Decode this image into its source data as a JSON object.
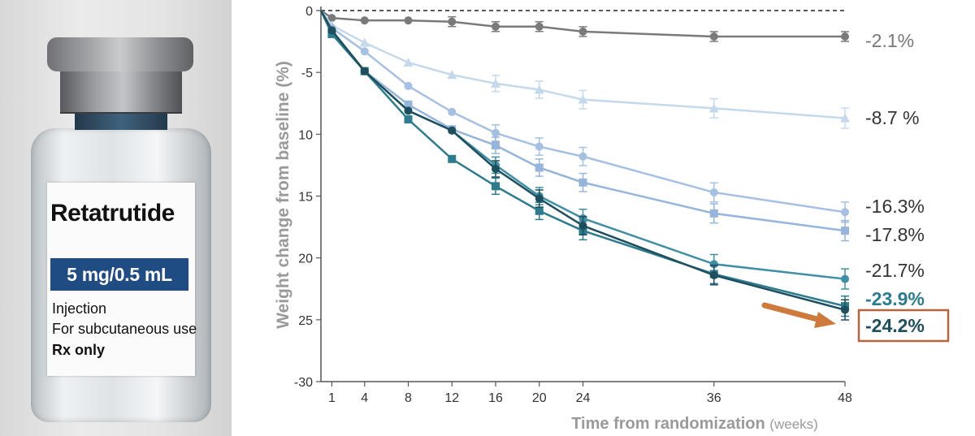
{
  "vial": {
    "name": "Retatrutide",
    "dose": "5 mg/0.5 mL",
    "line1": "Injection",
    "line2": "For subcutaneous use",
    "line3": "Rx only"
  },
  "colors": {
    "gray": "#7a7a7a",
    "lightest": "#c5d9ec",
    "light": "#a6c0e3",
    "mid": "#96b5dc",
    "teal": "#3f8fa6",
    "tealDark": "#2c7b8f",
    "dark": "#1e4f5e",
    "highlight_box": "#b5653b",
    "arrow": "#cd7a3c"
  },
  "chart_data": {
    "type": "line",
    "xlabel": "Time from randomization",
    "xlabel_unit": "(weeks)",
    "ylabel": "Weight change from baseline (%)",
    "xlim": [
      0,
      48
    ],
    "ylim": [
      -30,
      0
    ],
    "x_ticks": [
      1,
      4,
      8,
      12,
      16,
      20,
      24,
      36,
      48
    ],
    "y_ticks": [
      0,
      -5,
      -10,
      -15,
      -20,
      -25,
      -30
    ],
    "y_tick_labels": [
      "0",
      "-5",
      "10",
      "15",
      "20",
      "25",
      "-30"
    ],
    "reference_line": 0,
    "x": [
      0,
      1,
      4,
      8,
      12,
      16,
      20,
      24,
      36,
      48
    ],
    "series": [
      {
        "key": "gray",
        "marker": "circle",
        "values": [
          0,
          -0.6,
          -0.8,
          -0.8,
          -0.9,
          -1.3,
          -1.3,
          -1.7,
          -2.1,
          -2.1
        ],
        "end_label": "-2.1%"
      },
      {
        "key": "lightest",
        "marker": "triangle",
        "values": [
          0,
          -1.2,
          -2.6,
          -4.2,
          -5.2,
          -5.9,
          -6.4,
          -7.2,
          -7.9,
          -8.7
        ],
        "end_label": "-8.7 %"
      },
      {
        "key": "light",
        "marker": "circle",
        "values": [
          0,
          -1.4,
          -3.3,
          -6.1,
          -8.2,
          -9.9,
          -11.0,
          -11.8,
          -14.7,
          -16.3
        ],
        "end_label": "-16.3%"
      },
      {
        "key": "mid",
        "marker": "square",
        "values": [
          0,
          -1.6,
          -4.9,
          -7.6,
          -9.6,
          -10.9,
          -12.7,
          -13.9,
          -16.4,
          -17.8
        ],
        "end_label": "-17.8%"
      },
      {
        "key": "teal",
        "marker": "circle",
        "values": [
          0,
          -1.6,
          -4.9,
          -8.1,
          -9.7,
          -12.5,
          -15.0,
          -16.8,
          -20.5,
          -21.7
        ],
        "end_label": "-21.7%"
      },
      {
        "key": "tealDark",
        "marker": "square",
        "values": [
          0,
          -1.9,
          -4.9,
          -8.8,
          -12.0,
          -14.2,
          -16.2,
          -17.8,
          -21.3,
          -23.9
        ],
        "end_label": "-23.9%"
      },
      {
        "key": "dark",
        "marker": "circle",
        "values": [
          0,
          -1.6,
          -4.9,
          -8.1,
          -9.7,
          -12.8,
          -15.2,
          -17.4,
          -21.4,
          -24.2
        ],
        "end_label": "-24.2%",
        "highlighted": true
      }
    ]
  }
}
